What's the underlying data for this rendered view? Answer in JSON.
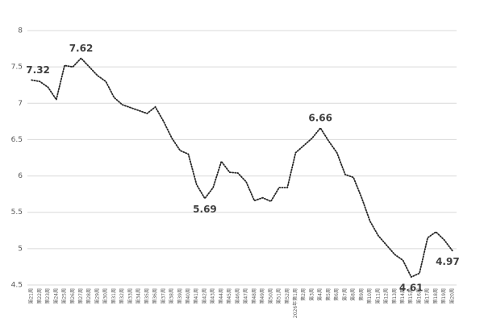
{
  "chart_data": {
    "type": "line",
    "categories": [
      "第21周",
      "第22周",
      "第23周",
      "第24周",
      "第25周",
      "第26周",
      "第27周",
      "第28周",
      "第29周",
      "第30周",
      "第31周",
      "第32周",
      "第33周",
      "第34周",
      "第35周",
      "第36周",
      "第37周",
      "第38周",
      "第39周",
      "第40周",
      "第41周",
      "第42周",
      "第43周",
      "第44周",
      "第45周",
      "第46周",
      "第47周",
      "第48周",
      "第49周",
      "第50周",
      "第51周",
      "第52周",
      "2026年第1周",
      "第2周",
      "第3周",
      "第4周",
      "第5周",
      "第6周",
      "第7周",
      "第8周",
      "第9周",
      "第10周",
      "第11周",
      "第12周",
      "第13周",
      "第14周",
      "第15周",
      "第16周",
      "第17周",
      "第18周",
      "第19周",
      "第20周"
    ],
    "series": [
      {
        "color": "#262626",
        "values": [
          7.32,
          7.3,
          7.22,
          7.05,
          7.52,
          7.5,
          7.62,
          7.5,
          7.38,
          7.3,
          7.08,
          6.98,
          6.94,
          6.9,
          6.86,
          6.95,
          6.75,
          6.52,
          6.35,
          6.3,
          5.88,
          5.69,
          5.84,
          6.2,
          6.05,
          6.04,
          5.92,
          5.66,
          5.7,
          5.65,
          5.84,
          5.84,
          6.32,
          6.42,
          6.52,
          6.66,
          6.48,
          6.32,
          6.02,
          5.98,
          5.7,
          5.38,
          5.18,
          5.05,
          4.92,
          4.84,
          4.61,
          4.66,
          5.15,
          5.23,
          5.12,
          4.97
        ],
        "value_labels": [
          "7.32",
          null,
          null,
          null,
          null,
          null,
          "7.62",
          null,
          null,
          null,
          null,
          null,
          null,
          null,
          null,
          null,
          null,
          null,
          null,
          null,
          null,
          "5.69",
          null,
          null,
          null,
          null,
          null,
          null,
          null,
          null,
          null,
          null,
          null,
          null,
          null,
          "6.66",
          null,
          null,
          null,
          null,
          null,
          null,
          null,
          null,
          null,
          null,
          "4.61",
          null,
          null,
          null,
          null,
          "4.97"
        ]
      }
    ],
    "ylim": [
      4.5,
      8
    ],
    "yticks": [
      4.5,
      5,
      5.5,
      6,
      6.5,
      7,
      7.5,
      8
    ],
    "grid": true
  }
}
